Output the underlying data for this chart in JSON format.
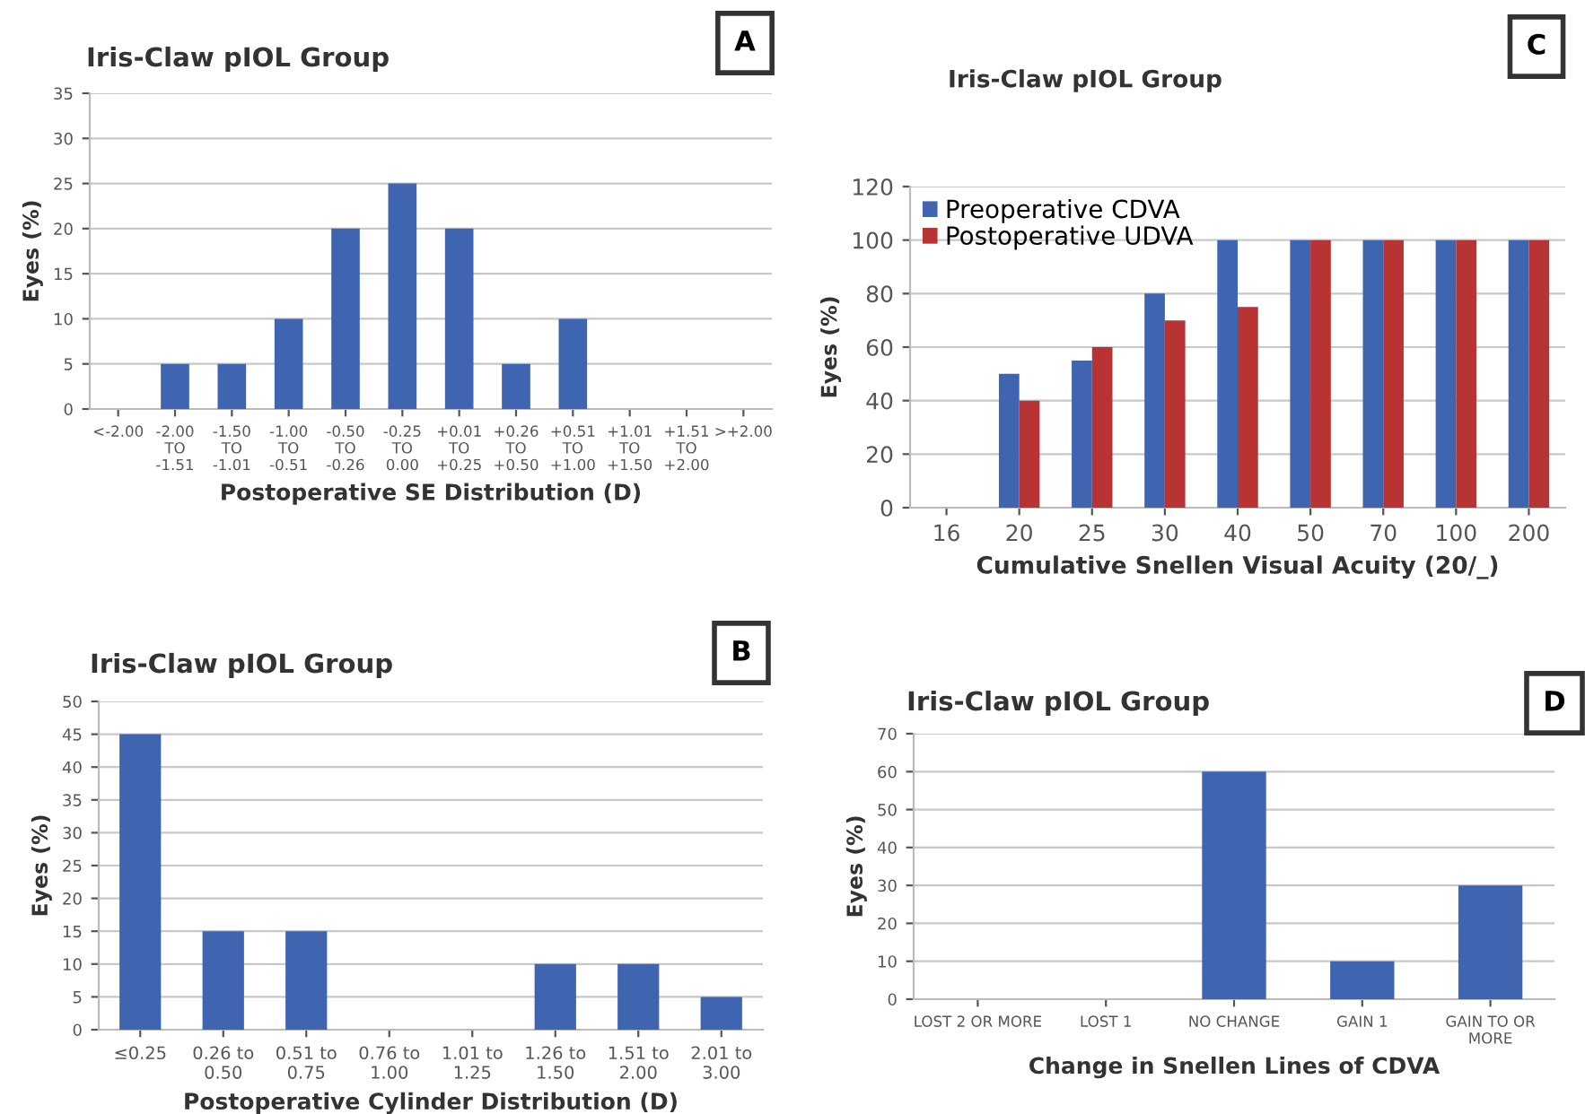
{
  "chart_data": [
    {
      "type": "bar",
      "title": "Iris-Claw pIOL Group",
      "xlabel": "Postoperative SE Distribution (D)",
      "ylabel": "Eyes (%)",
      "annotations": [
        "A"
      ],
      "categories": [
        "<-2.00",
        "-2.00\nTO\n-1.51",
        "-1.50\nTO\n-1.01",
        "-1.00\nTO\n-0.51",
        "-0.50\nTO\n-0.26",
        "-0.25\nTO\n0.00",
        "+0.01\nTO\n+0.25",
        "+0.26\nTO\n+0.50",
        "+0.51\nTO\n+1.00",
        "+1.01\nTO\n+1.50",
        "+1.51\nTO\n+2.00",
        ">+2.00"
      ],
      "values": [
        0,
        5,
        5,
        10,
        20,
        25,
        20,
        5,
        10,
        0,
        0,
        0
      ],
      "color": "#3f65b1",
      "ylim": [
        0,
        35
      ],
      "yticks": [
        0,
        5,
        10,
        15,
        20,
        25,
        30,
        35
      ],
      "grid": "y"
    },
    {
      "type": "bar",
      "title": "Iris-Claw pIOL Group",
      "xlabel": "Cumulative Snellen Visual Acuity (20/_)",
      "ylabel": "Eyes (%)",
      "annotations": [
        "C"
      ],
      "categories": [
        "16",
        "20",
        "25",
        "30",
        "40",
        "50",
        "70",
        "100",
        "200"
      ],
      "series": [
        {
          "name": "Preoperative CDVA",
          "color": "#3f65b1",
          "values": [
            0,
            50,
            55,
            80,
            100,
            100,
            100,
            100,
            100
          ]
        },
        {
          "name": "Postoperative UDVA",
          "color": "#b83434",
          "values": [
            0,
            40,
            60,
            70,
            75,
            100,
            100,
            100,
            100
          ]
        }
      ],
      "ylim": [
        0,
        120
      ],
      "yticks": [
        0,
        20,
        40,
        60,
        80,
        100,
        120
      ],
      "grid": "y",
      "legend": "top left"
    },
    {
      "type": "bar",
      "title": "Iris-Claw pIOL Group",
      "xlabel": "Postoperative Cylinder Distribution (D)",
      "ylabel": "Eyes (%)",
      "annotations": [
        "B"
      ],
      "categories": [
        "≤0.25",
        "0.26 to\n0.50",
        "0.51 to\n0.75",
        "0.76 to\n1.00",
        "1.01 to\n1.25",
        "1.26 to\n1.50",
        "1.51 to\n2.00",
        "2.01 to\n3.00"
      ],
      "values": [
        45,
        15,
        15,
        0,
        0,
        10,
        10,
        5
      ],
      "color": "#3f65b1",
      "ylim": [
        0,
        50
      ],
      "yticks": [
        0,
        5,
        10,
        15,
        20,
        25,
        30,
        35,
        40,
        45,
        50
      ],
      "grid": "y"
    },
    {
      "type": "bar",
      "title": "Iris-Claw pIOL Group",
      "xlabel": "Change in Snellen Lines of CDVA",
      "ylabel": "Eyes (%)",
      "annotations": [
        "D"
      ],
      "categories": [
        "LOST 2 OR MORE",
        "LOST 1",
        "NO CHANGE",
        "GAIN 1",
        "GAIN TO OR\nMORE"
      ],
      "values": [
        0,
        0,
        60,
        10,
        30
      ],
      "color": "#3f65b1",
      "ylim": [
        0,
        70
      ],
      "yticks": [
        0,
        10,
        20,
        30,
        40,
        50,
        60,
        70
      ],
      "grid": "y"
    }
  ]
}
